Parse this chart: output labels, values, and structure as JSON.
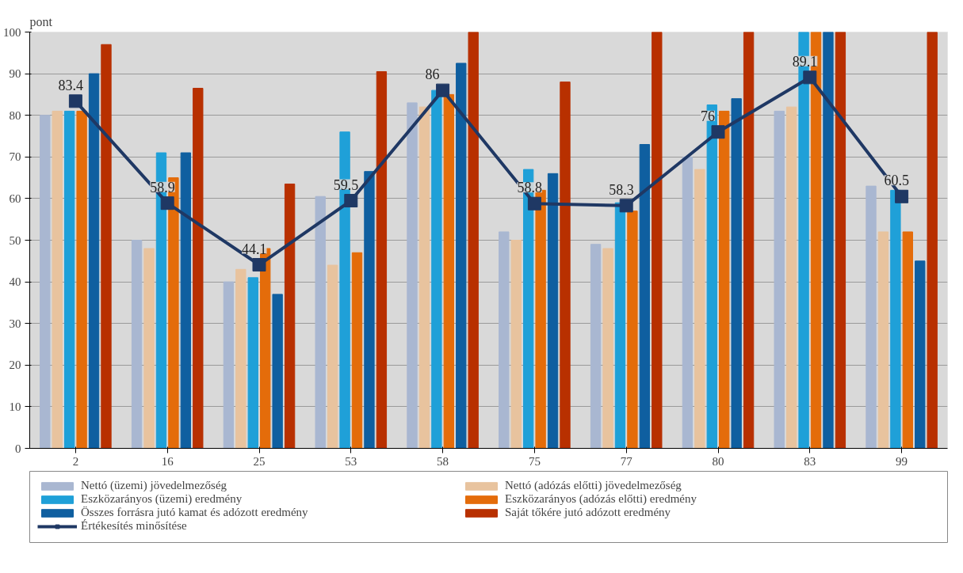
{
  "chart_data": {
    "type": "bar",
    "ylabel": "pont",
    "categories": [
      "2",
      "16",
      "25",
      "53",
      "58",
      "75",
      "77",
      "80",
      "83",
      "99"
    ],
    "ylim": [
      0,
      100
    ],
    "yticks": [
      0,
      10,
      20,
      30,
      40,
      50,
      60,
      70,
      80,
      90,
      100
    ],
    "grid": "y",
    "legend": "bottom",
    "series": [
      {
        "name": "Nettó (üzemi) jövedelmezőség",
        "color": "#a9b7d1",
        "values": [
          80,
          50,
          40,
          60.5,
          83,
          52,
          49,
          70,
          81,
          63
        ]
      },
      {
        "name": "Nettó (adózás előtti) jövedelmezőség",
        "color": "#e8c39e",
        "values": [
          81,
          48,
          43,
          44,
          82,
          50,
          48,
          67,
          82,
          52
        ]
      },
      {
        "name": "Eszközarányos (üzemi) eredmény",
        "color": "#1fa0d8",
        "values": [
          81,
          71,
          41,
          76,
          86,
          67,
          59,
          82.5,
          100,
          62
        ]
      },
      {
        "name": "Eszközarányos (adózás előtti) eredmény",
        "color": "#e46c0a",
        "values": [
          81,
          65,
          48,
          47,
          85,
          62,
          57,
          81,
          100,
          52
        ]
      },
      {
        "name": "Összes forrásra jutó kamat és adózott eredmény",
        "color": "#0f5fa0",
        "values": [
          90,
          71,
          37,
          66.5,
          92.5,
          66,
          73,
          84,
          100,
          45
        ]
      },
      {
        "name": "Saját tőkére jutó adózott eredmény",
        "color": "#b83000",
        "values": [
          97,
          86.5,
          63.5,
          90.5,
          100,
          88,
          100,
          100,
          100,
          100
        ]
      },
      {
        "name": "Értékesítés minősítése",
        "type": "line",
        "color": "#1f3864",
        "marker": "square",
        "data_labels": true,
        "values": [
          83.4,
          58.9,
          44.1,
          59.5,
          86,
          58.8,
          58.3,
          76,
          89.1,
          60.5
        ]
      }
    ]
  }
}
